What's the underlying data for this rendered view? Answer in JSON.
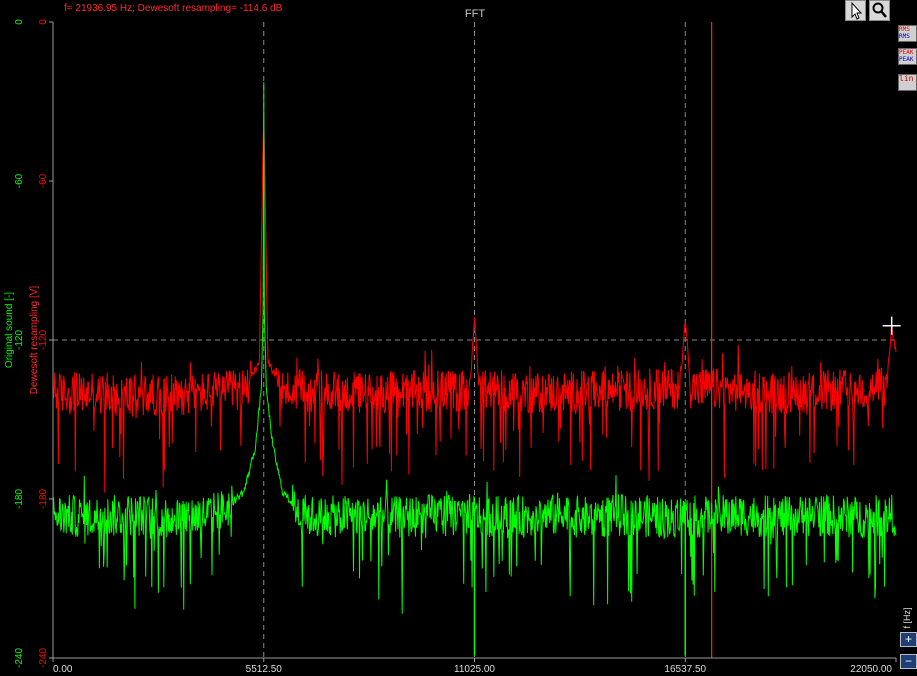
{
  "chart_data": {
    "type": "line",
    "title": "FFT",
    "readout": "f= 21936.95 Hz; Dewesoft resampling= -114.6 dB",
    "xlabel": "f [Hz]",
    "x_range": [
      0,
      22050
    ],
    "x_ticks": [
      "0.00",
      "5512.50",
      "11025.00",
      "16537.50",
      "22050.00"
    ],
    "y_axes": [
      {
        "label": "Original sound [-]",
        "color": "#00ff00",
        "range": [
          -240,
          0
        ],
        "ticks": [
          "0",
          "-60",
          "-120",
          "-180",
          "-240"
        ]
      },
      {
        "label": "Dewesoft resampling [V]",
        "color": "#ff0000",
        "range": [
          -240,
          0
        ],
        "ticks": [
          "0",
          "-60",
          "-120",
          "-180",
          "-240"
        ]
      }
    ],
    "cursor": {
      "x": 21936.95,
      "y": -114.6
    },
    "grid": true,
    "series": [
      {
        "name": "Original sound [-]",
        "color": "#00ff00",
        "noise_floor_db": -187,
        "x": [
          0,
          1000,
          2000,
          3000,
          4000,
          4500,
          5000,
          5300,
          5450,
          5500,
          5512.5,
          5525,
          5575,
          5750,
          6000,
          6500,
          7000,
          8000,
          9000,
          10000,
          11025,
          12000,
          13000,
          14000,
          15000,
          16000,
          16537.5,
          17000,
          18000,
          19000,
          20000,
          21000,
          22050
        ],
        "y": [
          -186,
          -187,
          -186,
          -187,
          -186,
          -184,
          -177,
          -160,
          -138,
          -108,
          -22,
          -108,
          -138,
          -160,
          -177,
          -186,
          -187,
          -186,
          -187,
          -186,
          -186,
          -187,
          -186,
          -187,
          -186,
          -187,
          -186,
          -187,
          -186,
          -187,
          -186,
          -187,
          -186
        ]
      },
      {
        "name": "Dewesoft resampling [V]",
        "color": "#ff0000",
        "noise_floor_db": -140,
        "x": [
          0,
          2000,
          4000,
          5000,
          5400,
          5512.5,
          5620,
          6000,
          8000,
          10900,
          11025,
          11150,
          13000,
          16400,
          16537.5,
          16680,
          19000,
          21800,
          21936.95,
          22050
        ],
        "y": [
          -140,
          -141,
          -140,
          -139,
          -128,
          -34,
          -128,
          -139,
          -140,
          -139,
          -112,
          -139,
          -140,
          -138,
          -112,
          -138,
          -140,
          -138,
          -114.6,
          -125
        ]
      }
    ],
    "markers": [
      {
        "x": 17228,
        "color": "#ff2222"
      }
    ]
  },
  "toolbar": {
    "select_icon": "cursor-arrow-icon",
    "zoom_icon": "magnifier-icon"
  },
  "side_panel": {
    "tabs": [
      "RMS",
      "PEAK",
      "lin"
    ],
    "zoom_in_icon": "plus-icon",
    "zoom_out_icon": "minus-icon"
  }
}
